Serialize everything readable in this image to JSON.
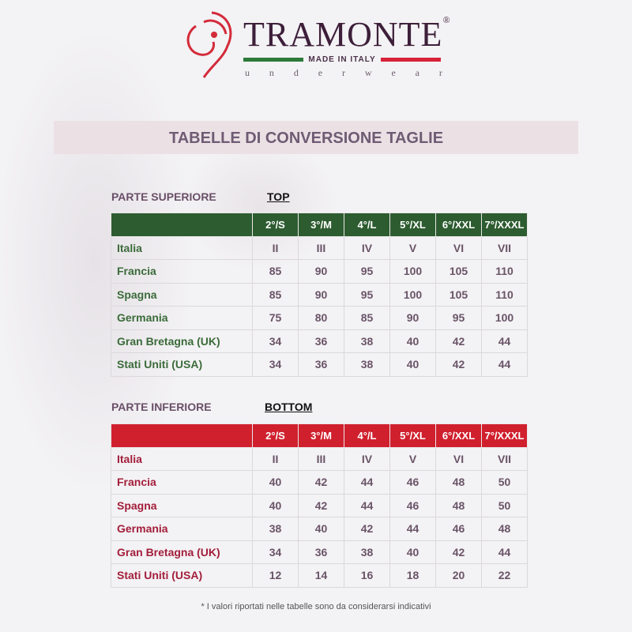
{
  "logo": {
    "brand": "TRAMONTE",
    "registered": "®",
    "tagline": "MADE IN ITALY",
    "sub": "underwear"
  },
  "title": "TABELLE DI CONVERSIONE TAGLIE",
  "sizes": [
    "2°/S",
    "3°/M",
    "4°/L",
    "5°/XL",
    "6°/XXL",
    "7°/XXXL"
  ],
  "top": {
    "label": "PARTE SUPERIORE",
    "tag": "TOP",
    "rows": [
      {
        "country": "Italia",
        "values": [
          "II",
          "III",
          "IV",
          "V",
          "VI",
          "VII"
        ]
      },
      {
        "country": "Francia",
        "values": [
          "85",
          "90",
          "95",
          "100",
          "105",
          "110"
        ]
      },
      {
        "country": "Spagna",
        "values": [
          "85",
          "90",
          "95",
          "100",
          "105",
          "110"
        ]
      },
      {
        "country": "Germania",
        "values": [
          "75",
          "80",
          "85",
          "90",
          "95",
          "100"
        ]
      },
      {
        "country": "Gran Bretagna (UK)",
        "values": [
          "34",
          "36",
          "38",
          "40",
          "42",
          "44"
        ]
      },
      {
        "country": "Stati Uniti (USA)",
        "values": [
          "34",
          "36",
          "38",
          "40",
          "42",
          "44"
        ]
      }
    ]
  },
  "bottom": {
    "label": "PARTE INFERIORE",
    "tag": "BOTTOM",
    "rows": [
      {
        "country": "Italia",
        "values": [
          "II",
          "III",
          "IV",
          "V",
          "VI",
          "VII"
        ]
      },
      {
        "country": "Francia",
        "values": [
          "40",
          "42",
          "44",
          "46",
          "48",
          "50"
        ]
      },
      {
        "country": "Spagna",
        "values": [
          "40",
          "42",
          "44",
          "46",
          "48",
          "50"
        ]
      },
      {
        "country": "Germania",
        "values": [
          "38",
          "40",
          "42",
          "44",
          "46",
          "48"
        ]
      },
      {
        "country": "Gran Bretagna (UK)",
        "values": [
          "34",
          "36",
          "38",
          "40",
          "42",
          "44"
        ]
      },
      {
        "country": "Stati Uniti (USA)",
        "values": [
          "12",
          "14",
          "16",
          "18",
          "20",
          "22"
        ]
      }
    ]
  },
  "footnote": "* I valori riportati nelle tabelle sono da considerarsi indicativi",
  "colors": {
    "top_header": "#2d5c30",
    "bottom_header": "#d0202e",
    "title": "#6f5b73"
  }
}
